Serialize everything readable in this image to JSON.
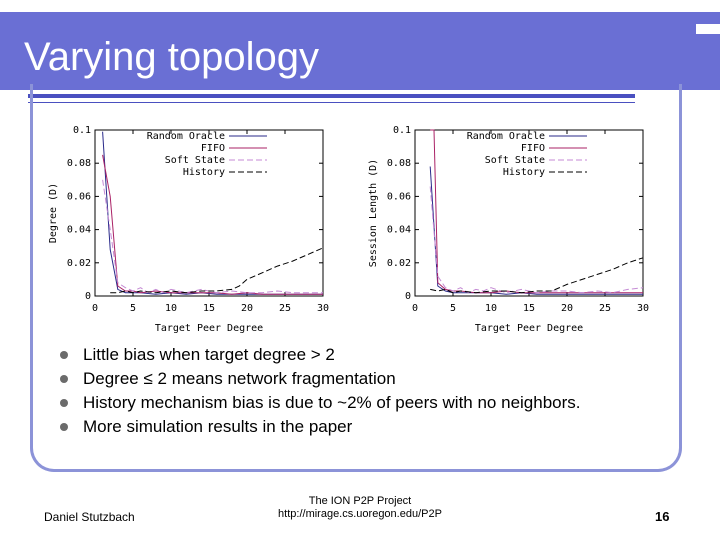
{
  "slide": {
    "title": "Varying topology",
    "bullets": [
      "Little bias when target degree > 2",
      "Degree ≤ 2 means network fragmentation",
      "History mechanism bias is due to ~2% of peers with no neighbors.",
      "More simulation results in the paper"
    ],
    "footer": {
      "author": "Daniel Stutzbach",
      "project": "The ION P2P Project",
      "url": "http://mirage.cs.uoregon.edu/P2P",
      "page": "16"
    }
  },
  "colors": {
    "header": "#6a6fd4",
    "accent_rule": "#4a50c0",
    "frame": "#8c93d8",
    "random_oracle": "#2a2a8a",
    "fifo": "#aa2266",
    "soft_state": "#c48ad4",
    "history": "#000000"
  },
  "chart_data": [
    {
      "type": "line",
      "xlabel": "Target Peer Degree",
      "ylabel": "Degree (D)",
      "xlim": [
        0,
        30
      ],
      "ylim": [
        0,
        0.1
      ],
      "xticks": [
        "0",
        "5",
        "10",
        "15",
        "20",
        "25",
        "30"
      ],
      "yticks": [
        "0",
        "0.02",
        "0.04",
        "0.06",
        "0.08",
        "0.1"
      ],
      "legend_position": "top-right",
      "series": [
        {
          "name": "Random Oracle",
          "color": "#2a2a8a",
          "dash": "solid",
          "x": [
            1,
            2,
            3,
            4,
            5,
            6,
            8,
            10,
            12,
            14,
            16,
            18,
            20,
            22,
            24,
            26,
            28,
            30
          ],
          "y": [
            0.099,
            0.028,
            0.004,
            0.002,
            0.002,
            0.002,
            0.001,
            0.002,
            0.001,
            0.002,
            0.001,
            0.001,
            0.001,
            0.001,
            0.001,
            0.001,
            0.001,
            0.001
          ]
        },
        {
          "name": "FIFO",
          "color": "#aa2266",
          "dash": "solid",
          "x": [
            1,
            2,
            3,
            4,
            5,
            6,
            8,
            10,
            12,
            14,
            16,
            18,
            20,
            22,
            24,
            26,
            28,
            30
          ],
          "y": [
            0.085,
            0.06,
            0.006,
            0.003,
            0.003,
            0.002,
            0.003,
            0.002,
            0.002,
            0.002,
            0.002,
            0.001,
            0.002,
            0.001,
            0.001,
            0.001,
            0.001,
            0.001
          ]
        },
        {
          "name": "Soft State",
          "color": "#c48ad4",
          "dash": "dashed",
          "x": [
            1,
            2,
            3,
            4,
            5,
            6,
            7,
            8,
            9,
            10,
            11,
            12,
            14,
            16,
            18,
            20,
            22,
            24,
            26,
            28,
            30
          ],
          "y": [
            0.07,
            0.04,
            0.008,
            0.005,
            0.003,
            0.005,
            0.002,
            0.004,
            0.002,
            0.004,
            0.003,
            0.002,
            0.004,
            0.002,
            0.003,
            0.002,
            0.002,
            0.003,
            0.002,
            0.002,
            0.002
          ]
        },
        {
          "name": "History",
          "color": "#000000",
          "dash": "dashed",
          "x": [
            2,
            3,
            4,
            5,
            6,
            8,
            10,
            12,
            14,
            16,
            18,
            19,
            20,
            22,
            24,
            26,
            28,
            30
          ],
          "y": [
            0.002,
            0.002,
            0.003,
            0.002,
            0.003,
            0.002,
            0.003,
            0.002,
            0.003,
            0.003,
            0.004,
            0.006,
            0.01,
            0.014,
            0.018,
            0.021,
            0.025,
            0.029
          ]
        }
      ]
    },
    {
      "type": "line",
      "xlabel": "Target Peer Degree",
      "ylabel": "Session Length (D)",
      "xlim": [
        0,
        30
      ],
      "ylim": [
        0,
        0.1
      ],
      "xticks": [
        "0",
        "5",
        "10",
        "15",
        "20",
        "25",
        "30"
      ],
      "yticks": [
        "0",
        "0.02",
        "0.04",
        "0.06",
        "0.08",
        "0.1"
      ],
      "legend_position": "top-right",
      "series": [
        {
          "name": "Random Oracle",
          "color": "#2a2a8a",
          "dash": "solid",
          "x": [
            2,
            3,
            4,
            5,
            6,
            8,
            10,
            12,
            14,
            16,
            18,
            20,
            22,
            24,
            26,
            28,
            30
          ],
          "y": [
            0.078,
            0.006,
            0.003,
            0.002,
            0.002,
            0.002,
            0.002,
            0.001,
            0.002,
            0.001,
            0.001,
            0.001,
            0.001,
            0.001,
            0.001,
            0.001,
            0.001
          ]
        },
        {
          "name": "FIFO",
          "color": "#aa2266",
          "dash": "solid",
          "x": [
            2,
            2.5,
            3,
            4,
            5,
            6,
            8,
            10,
            12,
            14,
            16,
            18,
            20,
            22,
            24,
            26,
            28,
            30
          ],
          "y": [
            0.1,
            0.1,
            0.008,
            0.004,
            0.003,
            0.003,
            0.002,
            0.002,
            0.003,
            0.002,
            0.002,
            0.002,
            0.002,
            0.002,
            0.002,
            0.002,
            0.002,
            0.002
          ]
        },
        {
          "name": "Soft State",
          "color": "#c48ad4",
          "dash": "dashed",
          "x": [
            2,
            3,
            4,
            5,
            6,
            7,
            8,
            9,
            10,
            12,
            14,
            16,
            18,
            20,
            22,
            24,
            26,
            28,
            30
          ],
          "y": [
            0.066,
            0.012,
            0.005,
            0.003,
            0.005,
            0.002,
            0.004,
            0.003,
            0.005,
            0.002,
            0.004,
            0.002,
            0.003,
            0.003,
            0.002,
            0.003,
            0.002,
            0.004,
            0.005
          ]
        },
        {
          "name": "History",
          "color": "#000000",
          "dash": "dashed",
          "x": [
            2,
            3,
            4,
            5,
            6,
            8,
            10,
            12,
            14,
            16,
            18,
            20,
            22,
            24,
            26,
            28,
            30
          ],
          "y": [
            0.004,
            0.003,
            0.004,
            0.002,
            0.003,
            0.002,
            0.003,
            0.003,
            0.002,
            0.003,
            0.003,
            0.007,
            0.01,
            0.013,
            0.016,
            0.02,
            0.023
          ]
        }
      ]
    }
  ]
}
